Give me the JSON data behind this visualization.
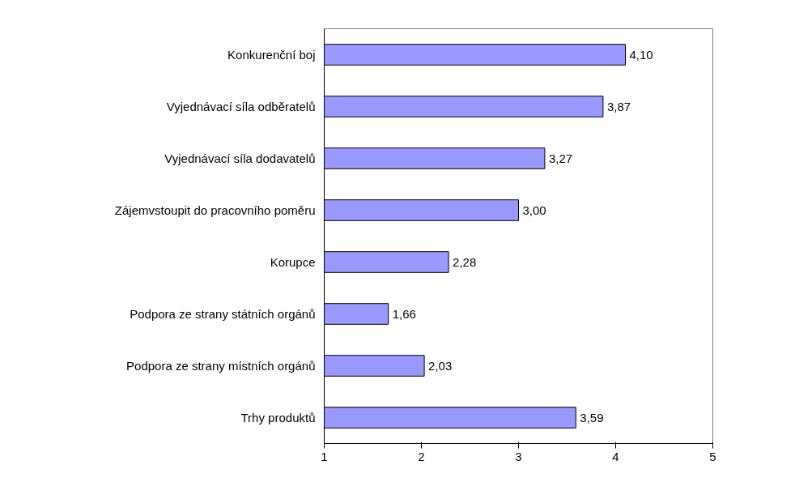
{
  "chart_data": {
    "type": "bar",
    "orientation": "horizontal",
    "categories": [
      "Konkurenční boj",
      "Vyjednávací síla odběratelů",
      "Vyjednávací síla dodavatelů",
      "Zájemvstoupit do pracovního poměru",
      "Korupce",
      "Podpora ze strany státních orgánů",
      "Podpora ze strany místních orgánů",
      "Trhy produktů"
    ],
    "values": [
      4.1,
      3.87,
      3.27,
      3.0,
      2.28,
      1.66,
      2.03,
      3.59
    ],
    "value_labels": [
      "4,10",
      "3,87",
      "3,27",
      "3,00",
      "2,28",
      "1,66",
      "2,03",
      "3,59"
    ],
    "color": "#9999ff",
    "xlim": [
      1,
      5
    ],
    "xticks": [
      1,
      2,
      3,
      4,
      5
    ],
    "grid": false
  }
}
